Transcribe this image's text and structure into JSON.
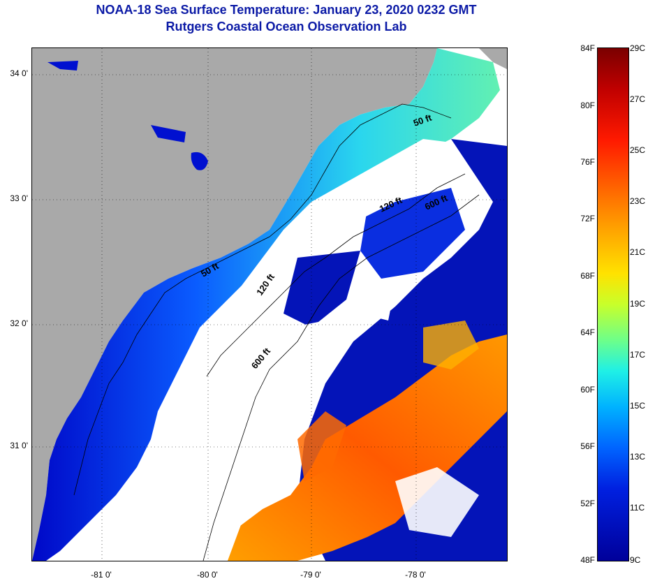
{
  "title_line1": "NOAA-18 Sea Surface Temperature:  January 23, 2020 0232 GMT",
  "title_line2": "Rutgers Coastal Ocean Observation Lab",
  "y_labels": [
    "34 0'",
    "33 0'",
    "32 0'",
    "31 0'"
  ],
  "x_labels": [
    "-81 0'",
    "-80 0'",
    "-79 0'",
    "-78 0'"
  ],
  "contour_labels": [
    "50 ft",
    "50 ft",
    "120 ft",
    "600 ft",
    "120 ft",
    "600 ft"
  ],
  "colorbar": {
    "fahrenheit": [
      "84F",
      "80F",
      "76F",
      "72F",
      "68F",
      "64F",
      "60F",
      "56F",
      "52F",
      "48F"
    ],
    "celsius": [
      "29C",
      "27C",
      "25C",
      "23C",
      "21C",
      "19C",
      "17C",
      "15C",
      "13C",
      "11C",
      "9C"
    ]
  },
  "colors": {
    "title": "#0b1aa6",
    "land": "#a9a9a9",
    "cloud": "#ffffff"
  }
}
